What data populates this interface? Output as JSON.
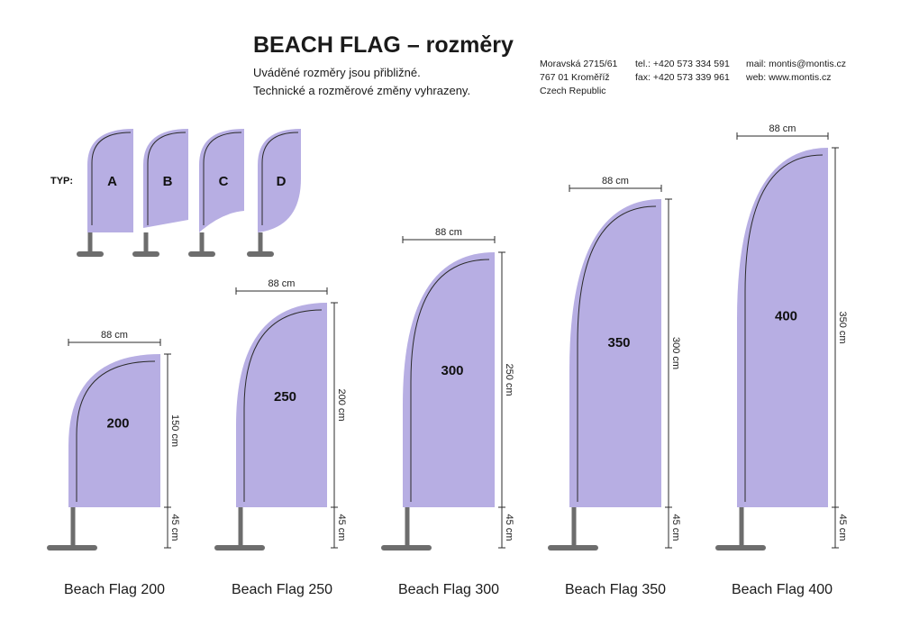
{
  "header": {
    "title": "BEACH FLAG – rozměry",
    "subtitle_line1": "Uváděné rozměry jsou přibližné.",
    "subtitle_line2": "Technické a rozměrové změny vyhrazeny."
  },
  "contact": {
    "address": "Moravská 2715/61\n767 01 Kroměříž\nCzech Republic",
    "phones": "tel.: +420 573 334 591\nfax: +420 573 339 961",
    "web": "mail: montis@montis.cz\nweb: www.montis.cz"
  },
  "types": {
    "label": "TYP:",
    "items": [
      "A",
      "B",
      "C",
      "D"
    ]
  },
  "flags": [
    {
      "label": "200",
      "width": "88 cm",
      "flag_height": "150 cm",
      "pole_height": "45 cm",
      "caption": "Beach Flag 200"
    },
    {
      "label": "250",
      "width": "88 cm",
      "flag_height": "200 cm",
      "pole_height": "45 cm",
      "caption": "Beach Flag 250"
    },
    {
      "label": "300",
      "width": "88 cm",
      "flag_height": "250 cm",
      "pole_height": "45 cm",
      "caption": "Beach Flag 300"
    },
    {
      "label": "350",
      "width": "88 cm",
      "flag_height": "300 cm",
      "pole_height": "45 cm",
      "caption": "Beach Flag 350"
    },
    {
      "label": "400",
      "width": "88 cm",
      "flag_height": "350 cm",
      "pole_height": "45 cm",
      "caption": "Beach Flag 400"
    }
  ],
  "colors": {
    "flag_fill": "#b7aee3",
    "pole": "#6d6d6d",
    "line": "#2b2b2b"
  }
}
